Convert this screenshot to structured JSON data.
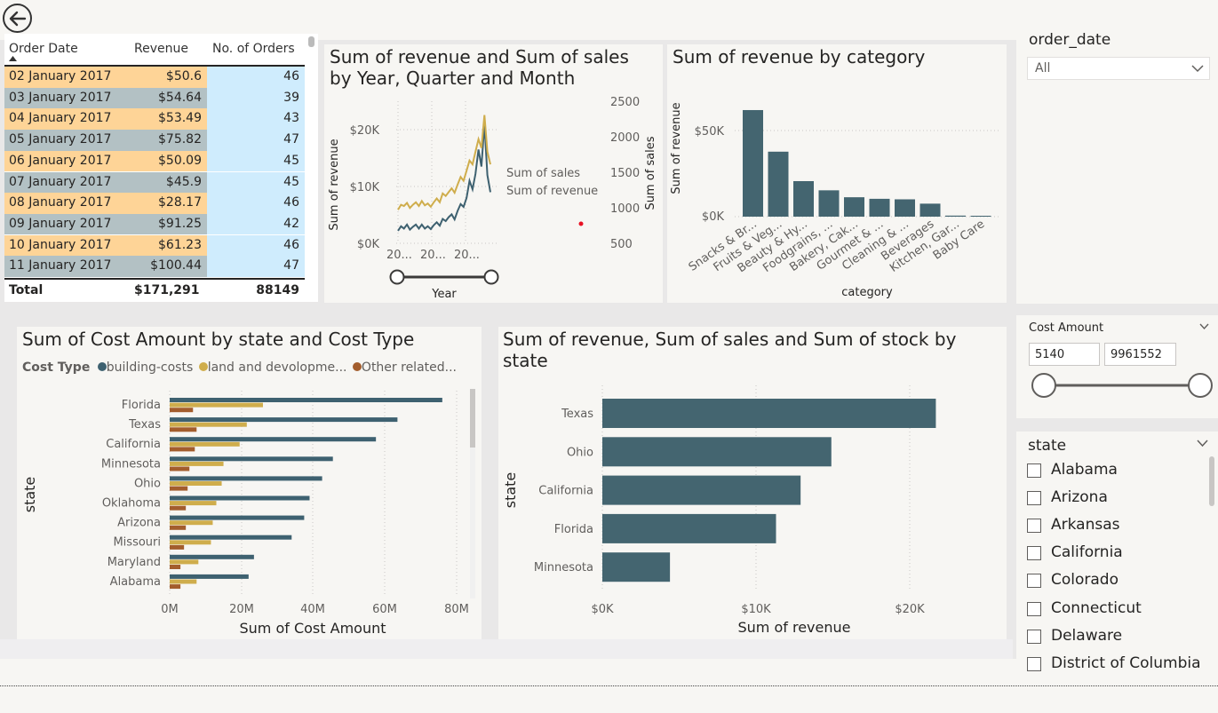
{
  "table": {
    "headers": [
      "Order Date",
      "Revenue",
      "No. of Orders"
    ],
    "rows": [
      {
        "date": "02 January 2017",
        "revenue": "$50.6",
        "orders": "46"
      },
      {
        "date": "03 January 2017",
        "revenue": "$54.64",
        "orders": "39"
      },
      {
        "date": "04 January 2017",
        "revenue": "$53.49",
        "orders": "43"
      },
      {
        "date": "05 January 2017",
        "revenue": "$75.82",
        "orders": "47"
      },
      {
        "date": "06 January 2017",
        "revenue": "$50.09",
        "orders": "45"
      },
      {
        "date": "07 January 2017",
        "revenue": "$45.9",
        "orders": "45"
      },
      {
        "date": "08 January 2017",
        "revenue": "$28.17",
        "orders": "46"
      },
      {
        "date": "09 January 2017",
        "revenue": "$91.25",
        "orders": "42"
      },
      {
        "date": "10 January 2017",
        "revenue": "$61.23",
        "orders": "46"
      },
      {
        "date": "11 January 2017",
        "revenue": "$100.44",
        "orders": "47"
      }
    ],
    "total": {
      "label": "Total",
      "revenue": "$171,291",
      "orders": "88149"
    },
    "row_colors": [
      "#fed497",
      "#b3c1c4"
    ]
  },
  "line_chart": {
    "title_line1": "Sum of revenue and Sum of sales",
    "title_line2": "by Year, Quarter and Month",
    "y_left_ticks": [
      "$20K",
      "$10K",
      "$0K"
    ],
    "y_right_ticks": [
      "2500",
      "2000",
      "1500",
      "1000",
      "500"
    ],
    "x_ticks": [
      "20...",
      "20...",
      "20..."
    ],
    "y_left_label": "Sum of revenue",
    "y_right_label": "Sum of sales",
    "x_label": "Year",
    "legend": [
      "Sum of sales",
      "Sum of revenue"
    ],
    "colors": {
      "sales": "#cfad4c",
      "revenue": "#3e6170"
    }
  },
  "category_chart": {
    "title": "Sum of revenue by category",
    "y_ticks": [
      "$50K",
      "$0K"
    ],
    "y_label": "Sum of revenue",
    "x_label": "category",
    "color": "#446570"
  },
  "cost_chart": {
    "title": "Sum of Cost Amount by state and Cost Type",
    "legend_title": "Cost Type",
    "legend": [
      {
        "label": "building-costs",
        "color": "#3e6170"
      },
      {
        "label": "land and devolopme...",
        "color": "#cfad4c"
      },
      {
        "label": "Other related...",
        "color": "#a35d2d"
      }
    ],
    "x_ticks": [
      "0M",
      "20M",
      "40M",
      "60M",
      "80M"
    ],
    "x_label": "Sum of Cost Amount",
    "y_label": "state"
  },
  "state_revenue_chart": {
    "title_line1": "Sum of revenue, Sum of sales and Sum of stock by",
    "title_line2": "state",
    "x_ticks": [
      "$0K",
      "$10K",
      "$20K"
    ],
    "x_label": "Sum of revenue",
    "y_label": "state",
    "color": "#446570"
  },
  "slicers": {
    "order_date": {
      "label": "order_date",
      "selected": "All"
    },
    "cost_amount": {
      "label": "Cost Amount",
      "min": "5140",
      "max": "9961552"
    },
    "state": {
      "label": "state",
      "items": [
        "Alabama",
        "Arizona",
        "Arkansas",
        "California",
        "Colorado",
        "Connecticut",
        "Delaware",
        "District of Columbia"
      ]
    }
  },
  "chart_data": [
    {
      "type": "line",
      "title": "Sum of revenue and Sum of sales by Year, Quarter and Month",
      "xlabel": "Year",
      "ylabel": "Sum of revenue",
      "y2label": "Sum of sales",
      "ylim": [
        0,
        25000
      ],
      "y2lim": [
        250,
        2500
      ],
      "series": [
        {
          "name": "Sum of sales",
          "axis": "right",
          "values": [
            780,
            860,
            840,
            890,
            810,
            860,
            900,
            840,
            920,
            850,
            880,
            830,
            900,
            960,
            900,
            1040,
            1000,
            1060,
            1120,
            1050,
            1180,
            1300,
            1240,
            1400,
            1560,
            1500,
            1700,
            1900,
            1760,
            2280,
            1700,
            1500
          ]
        },
        {
          "name": "Sum of revenue",
          "axis": "left",
          "values": [
            2200,
            3000,
            2600,
            3300,
            2400,
            2900,
            3300,
            2600,
            3300,
            2600,
            3000,
            2500,
            3200,
            3700,
            3100,
            4300,
            3900,
            4600,
            5100,
            4200,
            5700,
            6900,
            6400,
            8000,
            11000,
            9500,
            12200,
            16500,
            13500,
            21000,
            12000,
            9000
          ]
        }
      ]
    },
    {
      "type": "bar",
      "title": "Sum of revenue by category",
      "xlabel": "category",
      "ylabel": "Sum of revenue",
      "ylim": [
        0,
        62000
      ],
      "categories": [
        "Snacks & Br...",
        "Fruits & Veg...",
        "Beauty & Hy...",
        "Foodgrains, ...",
        "Bakery, Cak...",
        "Gourmet & ...",
        "Cleaning & ...",
        "Beverages",
        "Kitchen, Gar...",
        "Baby Care"
      ],
      "values": [
        61500,
        37500,
        20500,
        15200,
        11200,
        10300,
        10000,
        7500,
        600,
        400
      ]
    },
    {
      "type": "bar",
      "orientation": "horizontal",
      "title": "Sum of Cost Amount by state and Cost Type",
      "xlabel": "Sum of Cost Amount",
      "ylabel": "state",
      "xlim": [
        0,
        80000000
      ],
      "categories": [
        "Florida",
        "Texas",
        "California",
        "Minnesota",
        "Ohio",
        "Oklahoma",
        "Arizona",
        "Missouri",
        "Maryland",
        "Alabama"
      ],
      "series": [
        {
          "name": "building-costs",
          "values": [
            76000000,
            63500000,
            57500000,
            45500000,
            42500000,
            39000000,
            37500000,
            34000000,
            23500000,
            22000000
          ]
        },
        {
          "name": "land and devolopme...",
          "values": [
            26000000,
            21500000,
            19500000,
            15000000,
            14500000,
            13000000,
            12000000,
            11500000,
            8000000,
            7500000
          ]
        },
        {
          "name": "Other related...",
          "values": [
            6500000,
            7500000,
            7000000,
            5500000,
            5000000,
            4500000,
            4500000,
            4000000,
            3000000,
            3000000
          ]
        }
      ]
    },
    {
      "type": "bar",
      "orientation": "horizontal",
      "title": "Sum of revenue, Sum of sales and Sum of stock by state",
      "xlabel": "Sum of revenue",
      "ylabel": "state",
      "xlim": [
        0,
        25000
      ],
      "categories": [
        "Texas",
        "Ohio",
        "California",
        "Florida",
        "Minnesota"
      ],
      "values": [
        21700,
        14900,
        12900,
        11300,
        4400
      ]
    }
  ]
}
